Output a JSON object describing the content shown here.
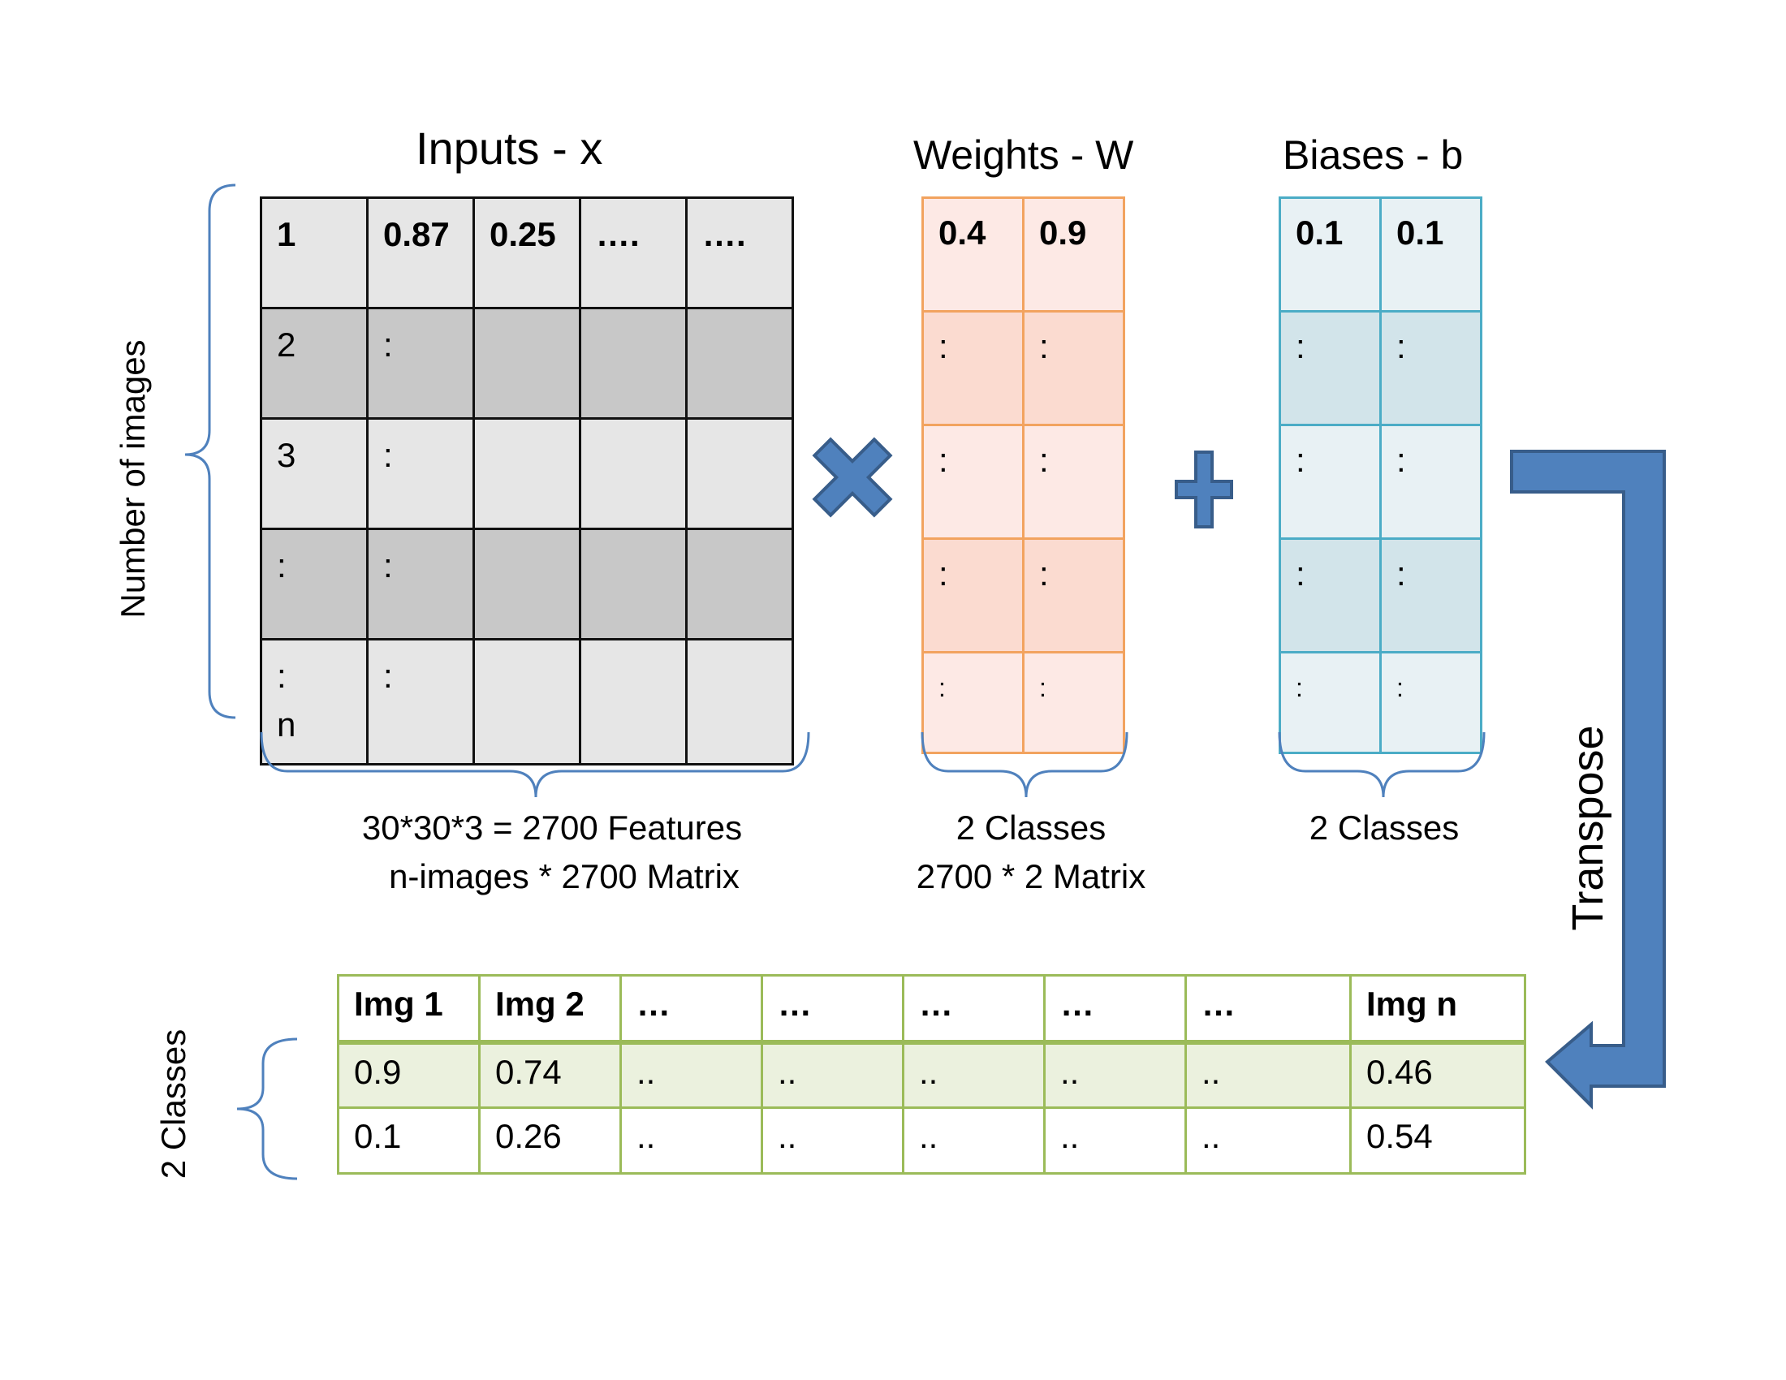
{
  "colors": {
    "accent": "#4f81bd",
    "accent_dark": "#385d8a",
    "weights_border": "#f2a35f",
    "biases_border": "#4bacc6",
    "output_border": "#9bbb59"
  },
  "inputs": {
    "title": "Inputs - x",
    "side_label": "Number of images",
    "caption_line1": "30*30*3 = 2700 Features",
    "caption_line2": "n-images * 2700 Matrix",
    "rows": [
      [
        "1",
        "0.87",
        "0.25",
        "….",
        "…."
      ],
      [
        "2",
        ":",
        "",
        "",
        ""
      ],
      [
        "3",
        ":",
        "",
        "",
        ""
      ],
      [
        ":",
        ":",
        "",
        "",
        ""
      ],
      [
        ":\nn",
        ":",
        "",
        "",
        ""
      ]
    ]
  },
  "weights": {
    "title": "Weights - W",
    "caption_line1": "2 Classes",
    "caption_line2": "2700 * 2 Matrix",
    "rows": [
      [
        "0.4",
        "0.9"
      ],
      [
        ":",
        ":"
      ],
      [
        ":",
        ":"
      ],
      [
        ":",
        ":"
      ],
      [
        ":",
        ":"
      ]
    ]
  },
  "biases": {
    "title": "Biases - b",
    "caption_line1": "2 Classes",
    "rows": [
      [
        "0.1",
        "0.1"
      ],
      [
        ":",
        ":"
      ],
      [
        ":",
        ":"
      ],
      [
        ":",
        ":"
      ],
      [
        ":",
        ":"
      ]
    ]
  },
  "operators": {
    "multiply_icon": "multiply-icon",
    "plus_icon": "plus-icon"
  },
  "transpose": {
    "label": "Transpose",
    "icon": "bent-arrow-icon"
  },
  "output": {
    "side_label": "2 Classes",
    "header": [
      "Img 1",
      "Img 2",
      "…",
      "…",
      "…",
      "…",
      "…",
      "Img n"
    ],
    "rows": [
      [
        "0.9",
        "0.74",
        "..",
        "..",
        "..",
        "..",
        "..",
        "0.46"
      ],
      [
        "0.1",
        "0.26",
        "..",
        "..",
        "..",
        "..",
        "..",
        "0.54"
      ]
    ]
  }
}
